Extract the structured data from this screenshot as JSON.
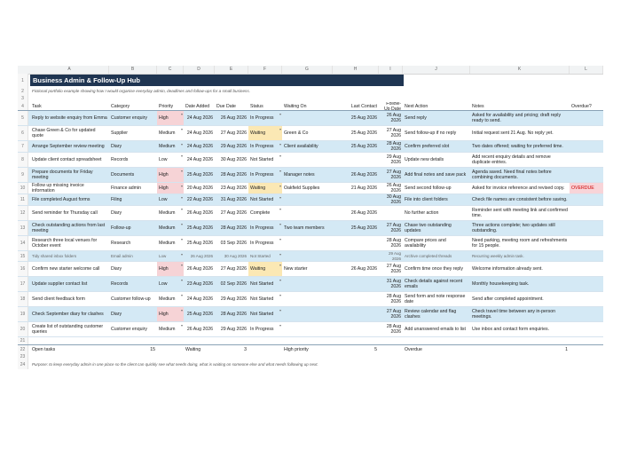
{
  "columns": [
    "A",
    "B",
    "C",
    "D",
    "E",
    "F",
    "G",
    "H",
    "I",
    "J",
    "K",
    "L"
  ],
  "title": "Business Admin & Follow-Up Hub",
  "subtitle": "Fictional portfolio example showing how I would organise everyday admin, deadlines and follow-ups for a small business.",
  "headers": [
    "Task",
    "Category",
    "Priority",
    "Date Added",
    "Due Date",
    "Status",
    "Waiting On",
    "Last Contact",
    "Follow-Up Date",
    "Next Action",
    "Notes",
    "Overdue?"
  ],
  "rows": [
    {
      "n": "5",
      "task": "Reply to website enquiry from Emma",
      "cat": "Customer enquiry",
      "pri": "High",
      "added": "24 Aug 2026",
      "due": "26 Aug 2026",
      "status": "In Progress",
      "waiting": "",
      "last": "25 Aug 2026",
      "follow": "26 Aug 2026",
      "next": "Send reply",
      "notes": "Asked for availability and pricing; draft reply ready to send.",
      "overdue": ""
    },
    {
      "n": "6",
      "task": "Chase Green & Co for updated quote",
      "cat": "Supplier",
      "pri": "Medium",
      "added": "24 Aug 2026",
      "due": "27 Aug 2026",
      "status": "Waiting",
      "waiting": "Green & Co",
      "last": "25 Aug 2026",
      "follow": "27 Aug 2026",
      "next": "Send follow-up if no reply",
      "notes": "Initial request sent 21 Aug. No reply yet.",
      "overdue": ""
    },
    {
      "n": "7",
      "task": "Arrange September review meeting",
      "cat": "Diary",
      "pri": "Medium",
      "added": "24 Aug 2026",
      "due": "29 Aug 2026",
      "status": "In Progress",
      "waiting": "Client availability",
      "last": "25 Aug 2026",
      "follow": "28 Aug 2026",
      "next": "Confirm preferred slot",
      "notes": "Two dates offered; waiting for preferred time.",
      "overdue": ""
    },
    {
      "n": "8",
      "task": "Update client contact spreadsheet",
      "cat": "Records",
      "pri": "Low",
      "added": "24 Aug 2026",
      "due": "30 Aug 2026",
      "status": "Not Started",
      "waiting": "",
      "last": "",
      "follow": "29 Aug 2026",
      "next": "Update new details",
      "notes": "Add recent enquiry details and remove duplicate entries.",
      "overdue": ""
    },
    {
      "n": "9",
      "task": "Prepare documents for Friday meeting",
      "cat": "Documents",
      "pri": "High",
      "added": "25 Aug 2026",
      "due": "28 Aug 2026",
      "status": "In Progress",
      "waiting": "Manager notes",
      "last": "26 Aug 2026",
      "follow": "27 Aug 2026",
      "next": "Add final notes and save pack",
      "notes": "Agenda saved. Need final notes before combining documents.",
      "overdue": ""
    },
    {
      "n": "10",
      "task": "Follow up missing invoice information",
      "cat": "Finance admin",
      "pri": "High",
      "added": "20 Aug 2026",
      "due": "23 Aug 2026",
      "status": "Waiting",
      "waiting": "Oakfield Supplies",
      "last": "21 Aug 2026",
      "follow": "26 Aug 2026",
      "next": "Send second follow-up",
      "notes": "Asked for invoice reference and revised copy.",
      "overdue": "OVERDUE"
    },
    {
      "n": "11",
      "task": "File completed August forms",
      "cat": "Filing",
      "pri": "Low",
      "added": "22 Aug 2026",
      "due": "31 Aug 2026",
      "status": "Not Started",
      "waiting": "",
      "last": "",
      "follow": "30 Aug 2026",
      "next": "File into client folders",
      "notes": "Check file names are consistent before saving.",
      "overdue": ""
    },
    {
      "n": "12",
      "task": "Send reminder for Thursday call",
      "cat": "Diary",
      "pri": "Medium",
      "added": "26 Aug 2026",
      "due": "27 Aug 2026",
      "status": "Complete",
      "waiting": "",
      "last": "26 Aug 2026",
      "follow": "",
      "next": "No further action",
      "notes": "Reminder sent with meeting link and confirmed time.",
      "overdue": ""
    },
    {
      "n": "13",
      "task": "Check outstanding actions from last meeting",
      "cat": "Follow-up",
      "pri": "Medium",
      "added": "25 Aug 2026",
      "due": "28 Aug 2026",
      "status": "In Progress",
      "waiting": "Two team members",
      "last": "25 Aug 2026",
      "follow": "27 Aug 2026",
      "next": "Chase two outstanding updates",
      "notes": "Three actions complete; two updates still outstanding.",
      "overdue": ""
    },
    {
      "n": "14",
      "task": "Research three local venues for October event",
      "cat": "Research",
      "pri": "Medium",
      "added": "25 Aug 2026",
      "due": "03 Sep 2026",
      "status": "In Progress",
      "waiting": "",
      "last": "",
      "follow": "28 Aug 2026",
      "next": "Compare prices and availability",
      "notes": "Need parking, meeting room and refreshments for 15 people.",
      "overdue": ""
    },
    {
      "n": "15",
      "task": "Tidy shared inbox folders",
      "cat": "Email admin",
      "pri": "Low",
      "added": "26 Aug 2026",
      "due": "30 Aug 2026",
      "status": "Not Started",
      "waiting": "",
      "last": "",
      "follow": "29 Aug 2026",
      "next": "Archive completed threads",
      "notes": "Recurring weekly admin task.",
      "overdue": ""
    },
    {
      "n": "16",
      "task": "Confirm new starter welcome call",
      "cat": "Diary",
      "pri": "High",
      "added": "26 Aug 2026",
      "due": "27 Aug 2026",
      "status": "Waiting",
      "waiting": "New starter",
      "last": "26 Aug 2026",
      "follow": "27 Aug 2026",
      "next": "Confirm time once they reply",
      "notes": "Welcome information already sent.",
      "overdue": ""
    },
    {
      "n": "17",
      "task": "Update supplier contact list",
      "cat": "Records",
      "pri": "Low",
      "added": "23 Aug 2026",
      "due": "02 Sep 2026",
      "status": "Not Started",
      "waiting": "",
      "last": "",
      "follow": "31 Aug 2026",
      "next": "Check details against recent emails",
      "notes": "Monthly housekeeping task.",
      "overdue": ""
    },
    {
      "n": "18",
      "task": "Send client feedback form",
      "cat": "Customer follow-up",
      "pri": "Medium",
      "added": "24 Aug 2026",
      "due": "29 Aug 2026",
      "status": "Not Started",
      "waiting": "",
      "last": "",
      "follow": "28 Aug 2026",
      "next": "Send form and note response date",
      "notes": "Send after completed appointment.",
      "overdue": ""
    },
    {
      "n": "19",
      "task": "Check September diary for clashes",
      "cat": "Diary",
      "pri": "High",
      "added": "25 Aug 2026",
      "due": "28 Aug 2026",
      "status": "Not Started",
      "waiting": "",
      "last": "",
      "follow": "27 Aug 2026",
      "next": "Review calendar and flag clashes",
      "notes": "Check travel time between any in-person meetings.",
      "overdue": ""
    },
    {
      "n": "20",
      "task": "Create list of outstanding customer queries",
      "cat": "Customer enquiry",
      "pri": "Medium",
      "added": "26 Aug 2026",
      "due": "29 Aug 2026",
      "status": "In Progress",
      "waiting": "",
      "last": "",
      "follow": "28 Aug 2026",
      "next": "Add unanswered emails to list",
      "notes": "Use inbox and contact form enquiries.",
      "overdue": ""
    }
  ],
  "summary": {
    "n": "22",
    "open_label": "Open tasks",
    "open_value": "15",
    "waiting_label": "Waiting",
    "waiting_value": "3",
    "high_label": "High priority",
    "high_value": "5",
    "overdue_label": "Overdue",
    "overdue_value": "1"
  },
  "blank_rows": [
    "21",
    "23"
  ],
  "footer_n": "24",
  "footer": "Purpose: to keep everyday admin in one place so the client can quickly see what needs doing, what is waiting on someone else and what needs following up next.",
  "colors": {
    "title_bg": "#1f3552",
    "alt_row": "#d4e9f5",
    "high": "#f6d3d6",
    "waiting": "#fbe8b4",
    "overdue": "#f8d4d8"
  }
}
